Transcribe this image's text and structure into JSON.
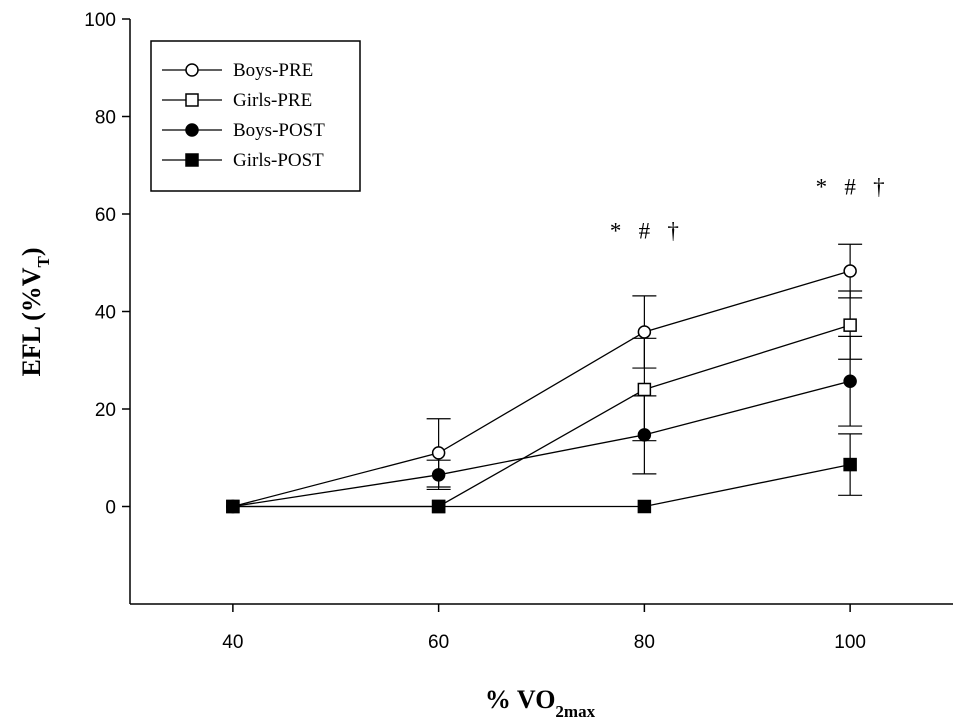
{
  "chart_data": {
    "type": "line",
    "xlabel": "% VO2max",
    "xlabel_main": "% VO",
    "xlabel_sub": "2max",
    "ylabel": "EFL (%VT)",
    "ylabel_main": "EFL (%V",
    "ylabel_sub": "T",
    "ylabel_close": ")",
    "x": [
      40,
      60,
      80,
      100
    ],
    "xlim": [
      30,
      110
    ],
    "ylim": [
      -20,
      100
    ],
    "x_ticks": [
      40,
      60,
      80,
      100
    ],
    "y_ticks": [
      0,
      20,
      40,
      60,
      80,
      100
    ],
    "grid": false,
    "legend_position": "top-left",
    "series": [
      {
        "name": "Boys-PRE",
        "marker": "circle-open",
        "values": [
          0,
          11,
          35.8,
          48.3
        ],
        "errors": [
          0,
          7,
          7.4,
          5.5
        ]
      },
      {
        "name": "Girls-PRE",
        "marker": "square-open",
        "values": [
          0,
          0,
          24,
          37.2
        ],
        "errors": [
          0,
          0,
          10.5,
          7
        ]
      },
      {
        "name": "Boys-POST",
        "marker": "circle-filled",
        "values": [
          0,
          6.5,
          14.7,
          25.7
        ],
        "errors": [
          0,
          3,
          8,
          9.2
        ]
      },
      {
        "name": "Girls-POST",
        "marker": "square-filled",
        "values": [
          0,
          0,
          0,
          8.6
        ],
        "errors": [
          0,
          0,
          0,
          6.3
        ]
      }
    ],
    "annotations": [
      {
        "x": 80,
        "text": "*   #   †",
        "y_level": 55
      },
      {
        "x": 100,
        "text": "*   #   †",
        "y_level": 64
      }
    ]
  }
}
